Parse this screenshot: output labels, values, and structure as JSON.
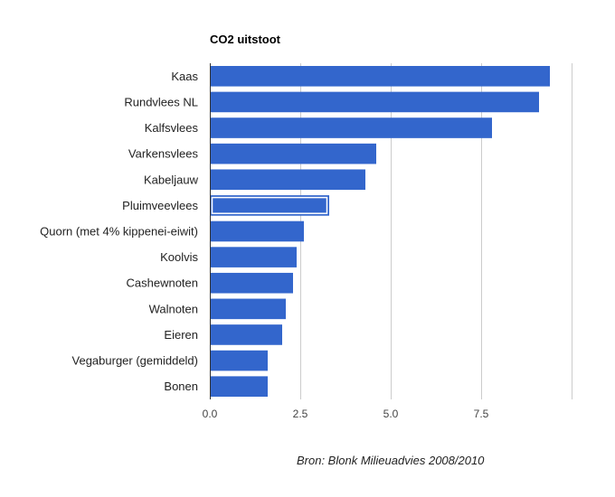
{
  "chart_data": {
    "type": "bar",
    "orientation": "horizontal",
    "title": "CO2 uitstoot",
    "categories": [
      "Kaas",
      "Rundvlees NL",
      "Kalfsvlees",
      "Varkensvlees",
      "Kabeljauw",
      "Pluimveevlees",
      "Quorn (met 4% kippenei-eiwit)",
      "Koolvis",
      "Cashewnoten",
      "Walnoten",
      "Eieren",
      "Vegaburger (gemiddeld)",
      "Bonen"
    ],
    "values": [
      9.4,
      9.1,
      7.8,
      4.6,
      4.3,
      3.3,
      2.6,
      2.4,
      2.3,
      2.1,
      2.0,
      1.6,
      1.6
    ],
    "xlim": [
      0,
      10
    ],
    "x_ticks": [
      "0.0",
      "2.5",
      "5.0",
      "7.5"
    ],
    "grid": true,
    "legend": "none",
    "highlighted_category": "Pluimveevlees",
    "bar_color": "#3366cc",
    "source": "Bron: Blonk Milieuadvies 2008/2010"
  }
}
